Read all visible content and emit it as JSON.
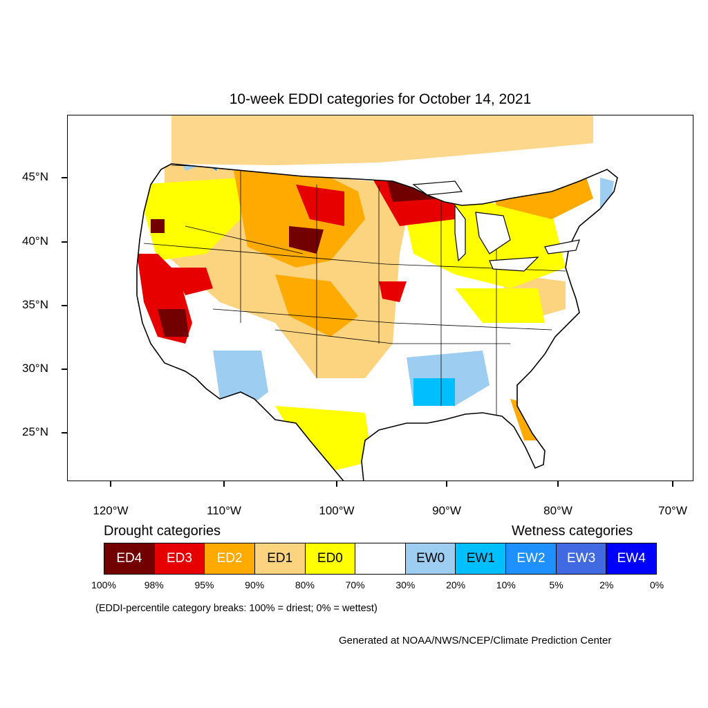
{
  "title": "10-week EDDI categories for October 14, 2021",
  "lat_labels": [
    "45°N",
    "40°N",
    "35°N",
    "30°N",
    "25°N"
  ],
  "lon_labels": [
    "120°W",
    "110°W",
    "100°W",
    "90°W",
    "80°W",
    "70°W"
  ],
  "legend": {
    "drought_heading": "Drought categories",
    "wetness_heading": "Wetness categories",
    "categories": [
      {
        "label": "ED4",
        "color": "#730000",
        "text_color": "#ffffff"
      },
      {
        "label": "ED3",
        "color": "#e60000",
        "text_color": "#ffffff"
      },
      {
        "label": "ED2",
        "color": "#ffaa00",
        "text_color": "#ffffff"
      },
      {
        "label": "ED1",
        "color": "#fcd37f",
        "text_color": "#000000"
      },
      {
        "label": "ED0",
        "color": "#ffff00",
        "text_color": "#000000"
      },
      {
        "label": "",
        "color": "#ffffff",
        "text_color": "#000000"
      },
      {
        "label": "EW0",
        "color": "#9dcdf0",
        "text_color": "#000000"
      },
      {
        "label": "EW1",
        "color": "#00bfff",
        "text_color": "#000000"
      },
      {
        "label": "EW2",
        "color": "#1e90ff",
        "text_color": "#ffffff"
      },
      {
        "label": "EW3",
        "color": "#4169e1",
        "text_color": "#ffffff"
      },
      {
        "label": "EW4",
        "color": "#0000ff",
        "text_color": "#ffffff"
      }
    ],
    "breaks": [
      "100%",
      "98%",
      "95%",
      "90%",
      "80%",
      "70%",
      "30%",
      "20%",
      "10%",
      "5%",
      "2%",
      "0%"
    ]
  },
  "note": "(EDDI-percentile category breaks: 100% = driest; 0% = wettest)",
  "credit": "Generated at NOAA/NWS/NCEP/Climate Prediction Center"
}
